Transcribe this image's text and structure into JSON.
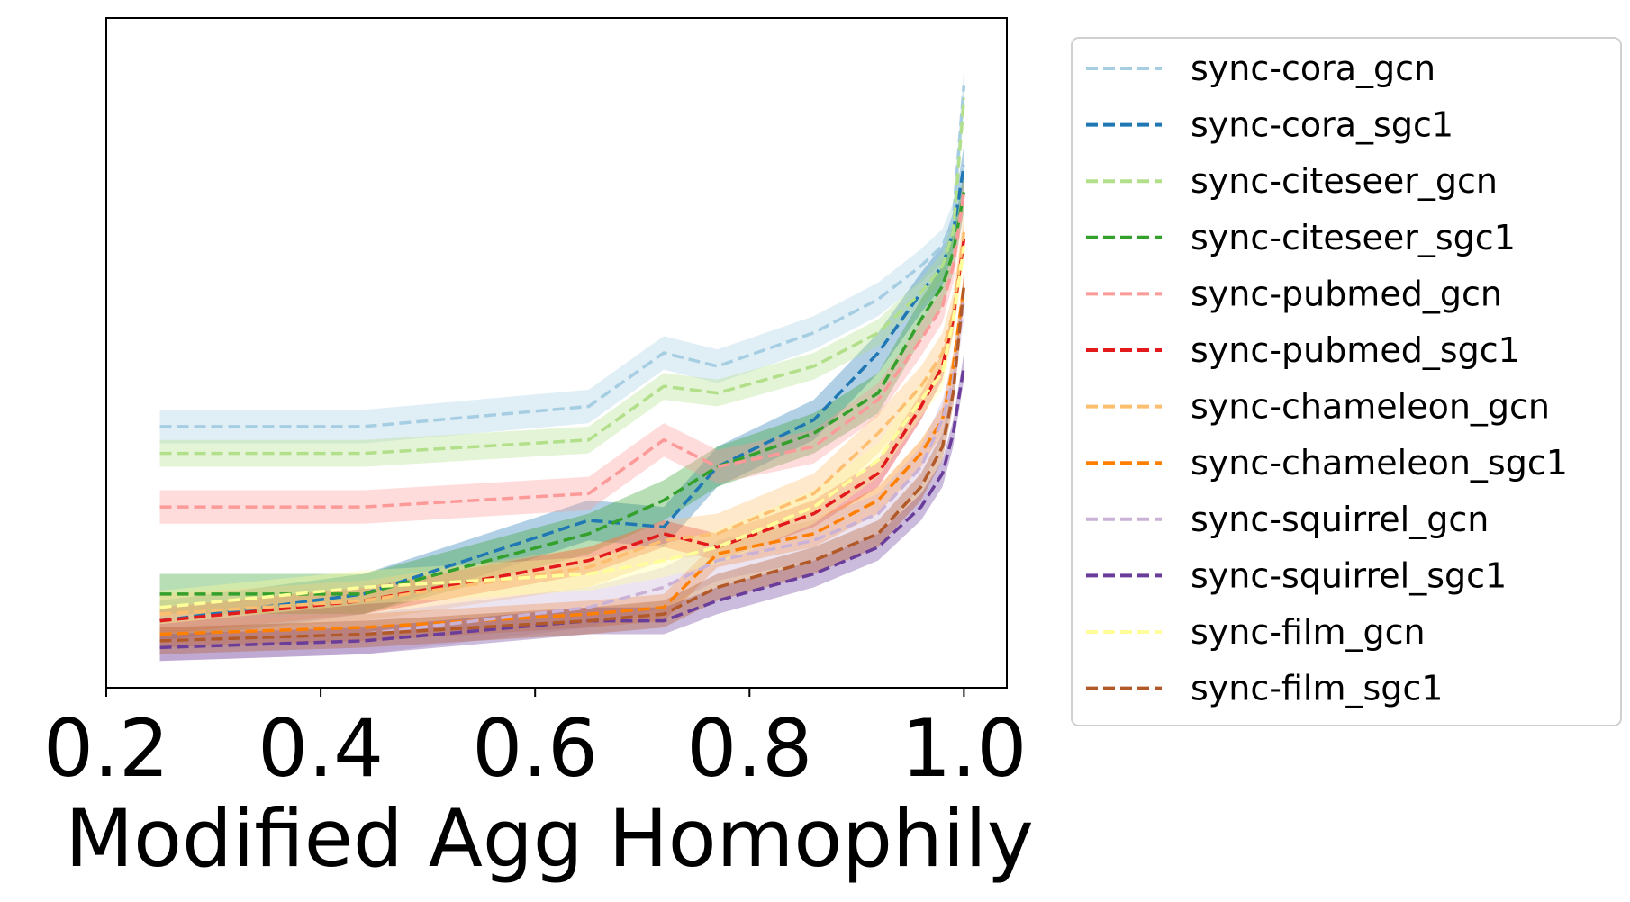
{
  "chart_data": {
    "type": "line",
    "title": "",
    "xlabel": "Modified Agg Homophily",
    "ylabel": "",
    "xlim": [
      0.2,
      1.04
    ],
    "ylim": [
      0.0,
      1.0
    ],
    "y_ticks_visible": false,
    "x_ticks": [
      0.2,
      0.4,
      0.6,
      0.8,
      1.0
    ],
    "x_tick_labels": [
      "0.2",
      "0.4",
      "0.6",
      "0.8",
      "1.0"
    ],
    "grid": false,
    "legend_position": "outside-right",
    "line_style": "dashed",
    "x": [
      0.25,
      0.44,
      0.65,
      0.72,
      0.77,
      0.86,
      0.92,
      0.96,
      0.98,
      0.99,
      1.0
    ],
    "series": [
      {
        "name": "sync-cora_gcn",
        "color": "#a6cee3",
        "values": [
          0.39,
          0.39,
          0.42,
          0.5,
          0.48,
          0.53,
          0.58,
          0.63,
          0.66,
          0.7,
          0.9
        ],
        "band": 0.025
      },
      {
        "name": "sync-cora_sgc1",
        "color": "#1f78b4",
        "values": [
          0.1,
          0.14,
          0.25,
          0.24,
          0.33,
          0.4,
          0.5,
          0.59,
          0.63,
          0.68,
          0.78
        ],
        "band": 0.03
      },
      {
        "name": "sync-citeseer_gcn",
        "color": "#b2df8a",
        "values": [
          0.35,
          0.35,
          0.37,
          0.45,
          0.44,
          0.48,
          0.53,
          0.59,
          0.63,
          0.68,
          0.88
        ],
        "band": 0.02
      },
      {
        "name": "sync-citeseer_sgc1",
        "color": "#33a02c",
        "values": [
          0.14,
          0.14,
          0.23,
          0.28,
          0.33,
          0.38,
          0.44,
          0.55,
          0.6,
          0.65,
          0.74
        ],
        "band": 0.03
      },
      {
        "name": "sync-pubmed_gcn",
        "color": "#fb9a99",
        "values": [
          0.27,
          0.27,
          0.29,
          0.37,
          0.33,
          0.36,
          0.43,
          0.52,
          0.57,
          0.63,
          0.74
        ],
        "band": 0.025
      },
      {
        "name": "sync-pubmed_sgc1",
        "color": "#e31a1c",
        "values": [
          0.1,
          0.13,
          0.19,
          0.23,
          0.21,
          0.26,
          0.32,
          0.42,
          0.48,
          0.55,
          0.67
        ],
        "band": 0.02
      },
      {
        "name": "sync-chameleon_gcn",
        "color": "#fdbf6f",
        "values": [
          0.11,
          0.13,
          0.18,
          0.22,
          0.23,
          0.29,
          0.38,
          0.45,
          0.5,
          0.56,
          0.68
        ],
        "band": 0.03
      },
      {
        "name": "sync-chameleon_sgc1",
        "color": "#ff7f00",
        "values": [
          0.08,
          0.09,
          0.11,
          0.12,
          0.2,
          0.23,
          0.28,
          0.35,
          0.4,
          0.48,
          0.6
        ],
        "band": 0.02
      },
      {
        "name": "sync-squirrel_gcn",
        "color": "#cab2d6",
        "values": [
          0.07,
          0.08,
          0.12,
          0.15,
          0.19,
          0.22,
          0.26,
          0.33,
          0.4,
          0.46,
          0.58
        ],
        "band": 0.03
      },
      {
        "name": "sync-squirrel_sgc1",
        "color": "#6a3d9a",
        "values": [
          0.06,
          0.07,
          0.1,
          0.1,
          0.13,
          0.17,
          0.21,
          0.27,
          0.32,
          0.38,
          0.48
        ],
        "band": 0.02
      },
      {
        "name": "sync-film_gcn",
        "color": "#ffff99",
        "values": [
          0.12,
          0.15,
          0.17,
          0.19,
          0.21,
          0.27,
          0.34,
          0.43,
          0.47,
          0.55,
          0.66
        ],
        "band": 0.025
      },
      {
        "name": "sync-film_sgc1",
        "color": "#b15928",
        "values": [
          0.07,
          0.08,
          0.1,
          0.11,
          0.15,
          0.19,
          0.23,
          0.3,
          0.36,
          0.44,
          0.6
        ],
        "band": 0.02
      }
    ]
  }
}
